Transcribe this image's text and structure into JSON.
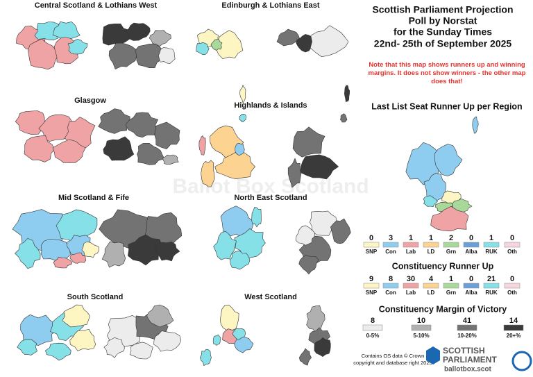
{
  "title": [
    "Scottish Parliament Projection",
    "Poll by Norstat",
    "for the Sunday Times",
    "22nd- 25th of September 2025"
  ],
  "note": "Note that this map shows runners up and winning margins. It does not show winners - the other map does that!",
  "watermark": "Ballot Box Scotland",
  "regions": [
    "Central Scotland & Lothians West",
    "Edinburgh & Lothians East",
    "Glasgow",
    "Highlands & Islands",
    "Mid Scotland & Fife",
    "North East Scotland",
    "South Scotland",
    "West Scotland"
  ],
  "list_title": "Last List Seat Runner Up per Region",
  "parties": [
    {
      "name": "SNP",
      "color": "#fdf6c3"
    },
    {
      "name": "Con",
      "color": "#8ecdf0"
    },
    {
      "name": "Lab",
      "color": "#f0a3a5"
    },
    {
      "name": "LD",
      "color": "#fcd390"
    },
    {
      "name": "Grn",
      "color": "#a8d89a"
    },
    {
      "name": "Alba",
      "color": "#6a9fd8"
    },
    {
      "name": "RUK",
      "color": "#86e0e8"
    },
    {
      "name": "Oth",
      "color": "#f7d5dd"
    }
  ],
  "list_counts": [
    0,
    3,
    1,
    1,
    2,
    0,
    1,
    0
  ],
  "constituency_title": "Constituency Runner Up",
  "constituency_counts": [
    9,
    8,
    30,
    4,
    1,
    0,
    21,
    0
  ],
  "margin_title": "Constituency Margin of Victory",
  "margins": [
    {
      "label": "0-5%",
      "count": 8,
      "color": "#ececec"
    },
    {
      "label": "5-10%",
      "count": 10,
      "color": "#b0b0b0"
    },
    {
      "label": "10-20%",
      "count": 41,
      "color": "#737373"
    },
    {
      "label": "20+%",
      "count": 14,
      "color": "#3a3a3a"
    }
  ],
  "footer": [
    "Contains OS data © Crown",
    "copyright and database right 2025"
  ],
  "logo": {
    "line1": "SCOTTISH",
    "line2": "PARLIAMENT",
    "site": "ballotbox.scot"
  }
}
